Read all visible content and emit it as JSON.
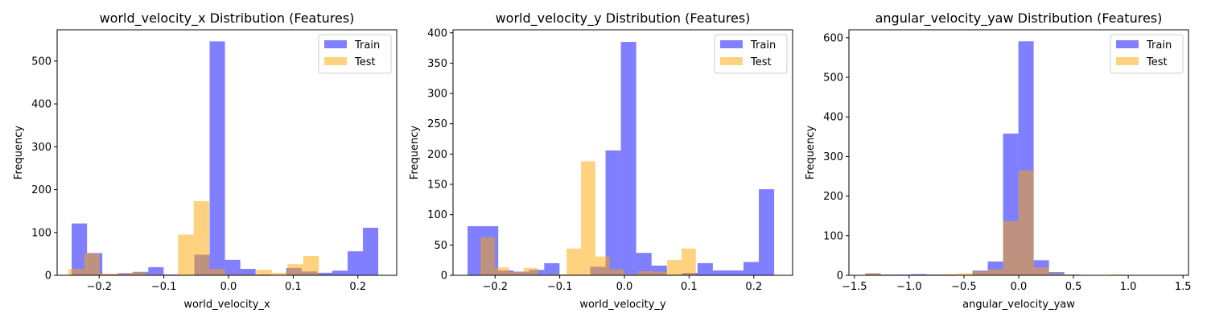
{
  "colors": {
    "train": "#0000ff",
    "test": "#ffa500"
  },
  "legend_labels": [
    "Train",
    "Test"
  ],
  "chart_data": [
    {
      "type": "bar",
      "title": "world_velocity_x Distribution (Features)",
      "xlabel": "world_velocity_x",
      "ylabel": "Frequency",
      "xlim": [
        -0.265,
        0.26
      ],
      "ylim": [
        0,
        573
      ],
      "xticks": [
        -0.2,
        -0.1,
        0.0,
        0.1,
        0.2
      ],
      "xtick_labels": [
        "−0.2",
        "−0.1",
        "0.0",
        "0.1",
        "0.2"
      ],
      "yticks": [
        0,
        100,
        200,
        300,
        400,
        500
      ],
      "legend": "top-right",
      "series": [
        {
          "name": "Train",
          "bin_start": -0.2425,
          "bin_width": 0.0237,
          "values": [
            121,
            52,
            2,
            5,
            8,
            19,
            2,
            1,
            48,
            546,
            36,
            15,
            2,
            1,
            17,
            9,
            6,
            11,
            56,
            111
          ]
        },
        {
          "name": "Test",
          "bin_start": -0.2475,
          "bin_width": 0.0242,
          "values": [
            15,
            51,
            4,
            4,
            7,
            2,
            1,
            95,
            173,
            15,
            2,
            2,
            13,
            6,
            26,
            45
          ]
        }
      ]
    },
    {
      "type": "bar",
      "title": "world_velocity_y Distribution (Features)",
      "xlabel": "world_velocity_y",
      "ylabel": "Frequency",
      "xlim": [
        -0.265,
        0.26
      ],
      "ylim": [
        0,
        405
      ],
      "xticks": [
        -0.2,
        -0.1,
        0.0,
        0.1,
        0.2
      ],
      "xtick_labels": [
        "−0.2",
        "−0.1",
        "0.0",
        "0.1",
        "0.2"
      ],
      "yticks": [
        0,
        50,
        100,
        150,
        200,
        250,
        300,
        350,
        400
      ],
      "legend": "top-right",
      "series": [
        {
          "name": "Train",
          "bin_start": -0.2425,
          "bin_width": 0.0237,
          "values": [
            81,
            81,
            8,
            6,
            9,
            20,
            1,
            1,
            14,
            206,
            385,
            37,
            16,
            1,
            4,
            20,
            8,
            8,
            22,
            142
          ]
        },
        {
          "name": "Test",
          "bin_start": -0.2225,
          "bin_width": 0.0222,
          "values": [
            63,
            13,
            5,
            12,
            1,
            2,
            44,
            188,
            31,
            10,
            2,
            7,
            6,
            25,
            44
          ]
        }
      ]
    },
    {
      "type": "bar",
      "title": "angular_velocity_yaw Distribution (Features)",
      "xlabel": "angular_velocity_yaw",
      "ylabel": "Frequency",
      "xlim": [
        -1.55,
        1.55
      ],
      "ylim": [
        0,
        620
      ],
      "xticks": [
        -1.5,
        -1.0,
        -0.5,
        0.0,
        0.5,
        1.0,
        1.5
      ],
      "xtick_labels": [
        "−1.5",
        "−1.0",
        "−0.5",
        "0.0",
        "0.5",
        "1.0",
        "1.5"
      ],
      "yticks": [
        0,
        100,
        200,
        300,
        400,
        500,
        600
      ],
      "legend": "top-right",
      "series": [
        {
          "name": "Train",
          "bin_start": -1.4,
          "bin_width": 0.1397,
          "values": [
            5,
            2,
            2,
            3,
            2,
            2,
            0,
            12,
            35,
            358,
            591,
            38,
            8,
            2,
            0,
            0,
            0,
            0,
            0,
            1
          ]
        },
        {
          "name": "Test",
          "bin_start": -1.4,
          "bin_width": 0.1397,
          "values": [
            5,
            2,
            1,
            1,
            1,
            3,
            5,
            10,
            15,
            137,
            265,
            20,
            5,
            2,
            1,
            1,
            2,
            1,
            1,
            1
          ]
        }
      ]
    }
  ]
}
